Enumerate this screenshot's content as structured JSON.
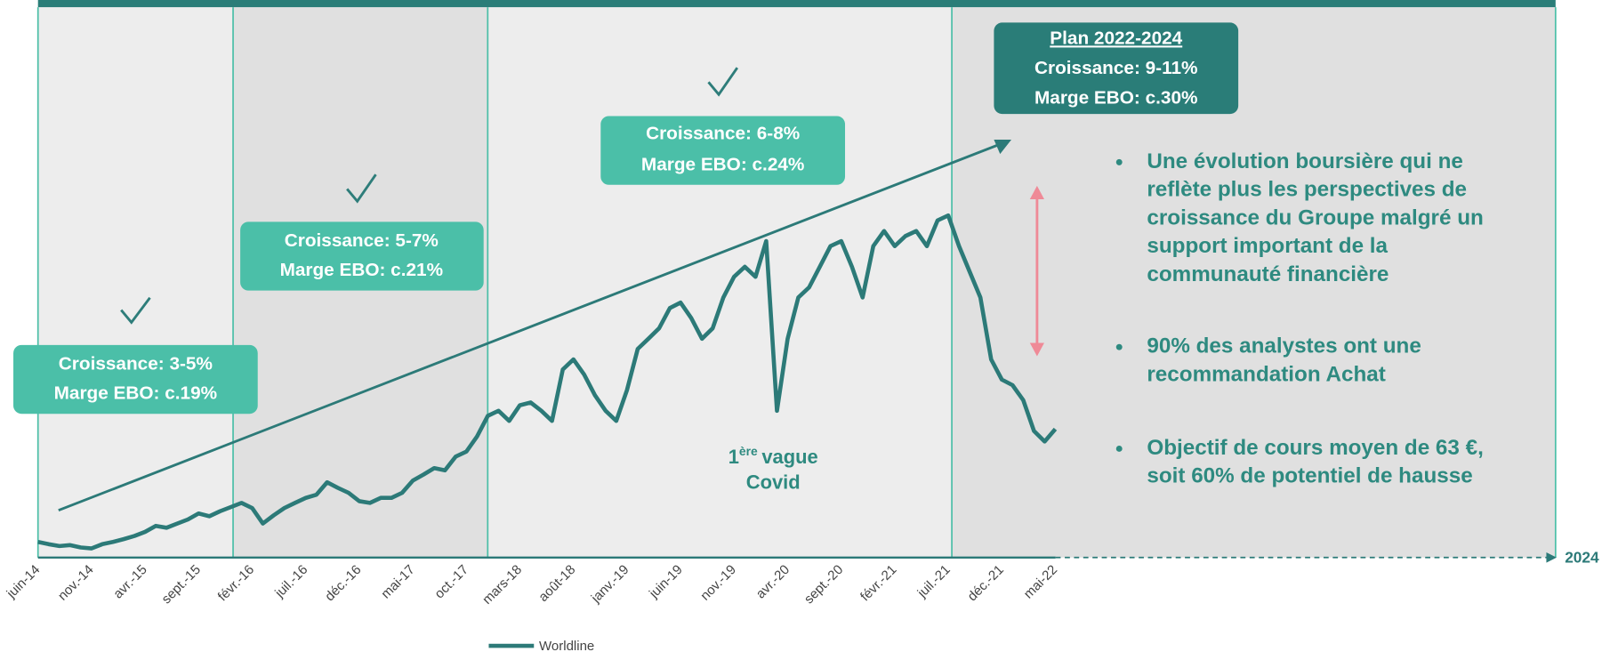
{
  "chart_data": {
    "type": "line",
    "categories": [
      "juin-14",
      null,
      null,
      null,
      null,
      "nov.-14",
      null,
      null,
      null,
      null,
      "avr.-15",
      null,
      null,
      null,
      null,
      "sept.-15",
      null,
      null,
      null,
      null,
      "févr.-16",
      null,
      null,
      null,
      null,
      "juil.-16",
      null,
      null,
      null,
      null,
      "déc.-16",
      null,
      null,
      null,
      null,
      "mai-17",
      null,
      null,
      null,
      null,
      "oct.-17",
      null,
      null,
      null,
      null,
      "mars-18",
      null,
      null,
      null,
      null,
      "août-18",
      null,
      null,
      null,
      null,
      "janv.-19",
      null,
      null,
      null,
      null,
      "juin-19",
      null,
      null,
      null,
      null,
      "nov.-19",
      null,
      null,
      null,
      null,
      "avr.-20",
      null,
      null,
      null,
      null,
      "sept.-20",
      null,
      null,
      null,
      null,
      "févr.-21",
      null,
      null,
      null,
      null,
      "juil.-21",
      null,
      null,
      null,
      null,
      "déc.-21",
      null,
      null,
      null,
      null,
      "mai-22"
    ],
    "series": [
      {
        "name": "Worldline",
        "color": "#2c7a78",
        "values": [
          18.4,
          17.9,
          17.5,
          17.7,
          17.2,
          17.0,
          17.9,
          18.4,
          19.0,
          19.7,
          20.6,
          21.9,
          21.5,
          22.4,
          23.3,
          24.6,
          24.0,
          25.1,
          26.0,
          26.9,
          25.8,
          22.4,
          24.2,
          25.8,
          26.9,
          28.0,
          28.7,
          31.4,
          30.2,
          29.1,
          27.3,
          26.9,
          28.0,
          28.0,
          29.1,
          31.8,
          33.1,
          34.5,
          34.0,
          37.0,
          38.1,
          41.4,
          45.9,
          47.0,
          44.8,
          48.2,
          48.8,
          47.0,
          44.8,
          56.0,
          58.2,
          54.9,
          50.4,
          47.0,
          44.8,
          51.5,
          60.5,
          62.7,
          65.0,
          69.4,
          70.6,
          67.2,
          62.7,
          65.0,
          71.7,
          76.2,
          78.4,
          76.2,
          84.0,
          47.0,
          62.7,
          71.7,
          73.9,
          78.4,
          82.9,
          84.0,
          78.4,
          71.7,
          82.9,
          86.2,
          82.9,
          85.1,
          86.2,
          82.9,
          88.5,
          89.6,
          82.9,
          77.3,
          71.7,
          58.2,
          53.8,
          52.6,
          49.3,
          42.6,
          40.3,
          43.0
        ]
      }
    ],
    "ylim": [
      15,
      135
    ],
    "boxes": [
      {
        "lines": [
          "Croissance: 3-5%",
          "Marge EBO: c.19%"
        ]
      },
      {
        "lines": [
          "Croissance: 5-7%",
          "Marge EBO: c.21%"
        ]
      },
      {
        "lines": [
          "Croissance: 6-8%",
          "Marge EBO: c.24%"
        ]
      },
      {
        "lines": [
          "Plan 2022-2024",
          "Croissance: 9-11%",
          "Marge EBO: c.30%"
        ]
      }
    ],
    "covid_note": {
      "number": "1",
      "superscript": "ère",
      "rest": "vague",
      "line2": "Covid"
    },
    "end_label": "2024",
    "bullets": [
      [
        "Une évolution boursière qui ne",
        "reflète plus les perspectives de",
        "croissance du Groupe malgré un",
        "support important de la",
        "communauté financière"
      ],
      [
        "90% des analystes ont une",
        "recommandation Achat"
      ],
      [
        "Objectif de cours moyen de 63 €,",
        "soit 60% de potentiel de hausse"
      ]
    ]
  }
}
